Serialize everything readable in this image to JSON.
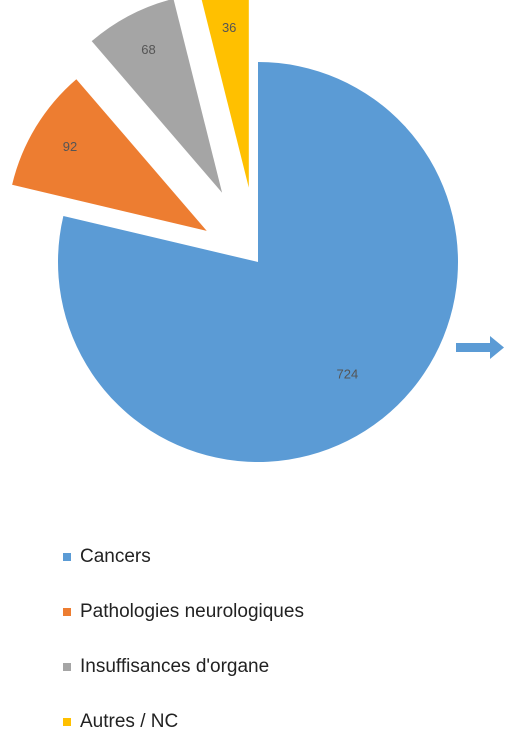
{
  "chart_data": {
    "type": "pie",
    "categories": [
      "Cancers",
      "Pathologies neurologiques",
      "Insuffisances d'organe",
      "Autres / NC"
    ],
    "values": [
      724,
      92,
      68,
      36
    ],
    "colors": [
      "#5b9bd5",
      "#ed7d31",
      "#a5a5a5",
      "#ffc000"
    ],
    "legend": "bottom"
  }
}
